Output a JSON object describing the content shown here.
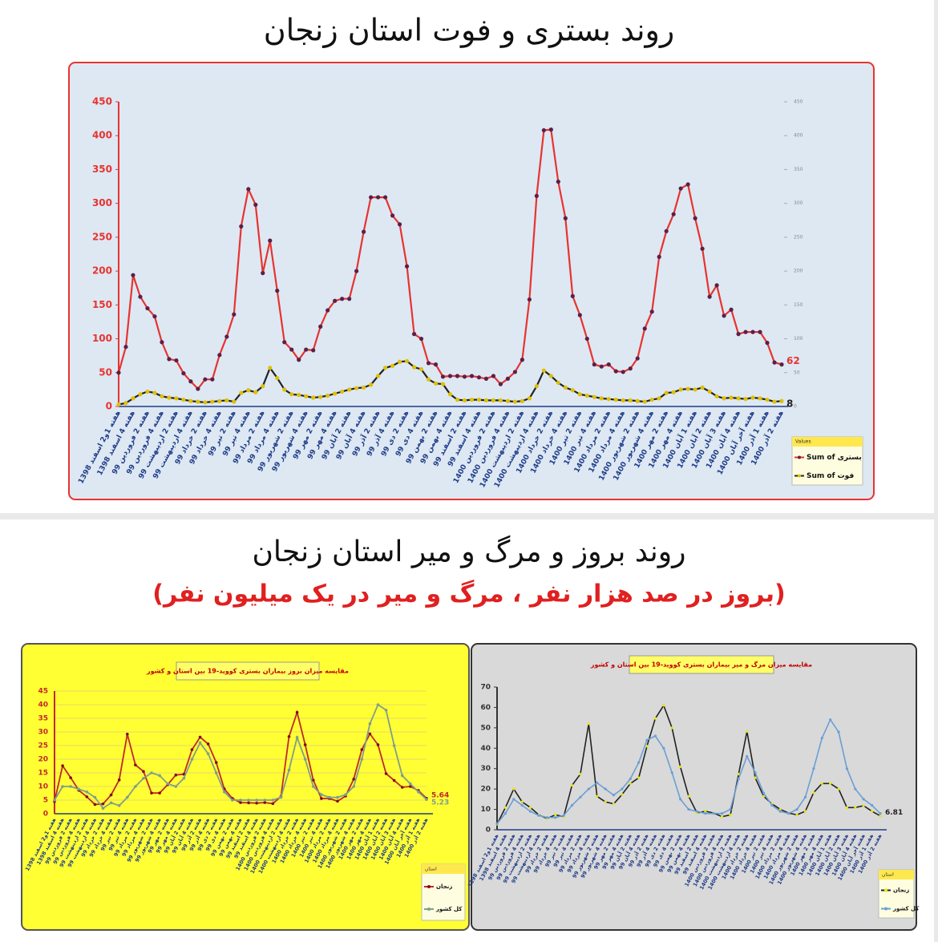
{
  "sections": [
    {
      "title": "روند بستری و فوت استان زنجان"
    },
    {
      "title": "روند بروز و مرگ و میر استان زنجان",
      "subtitle": "(بروز در صد هزار نفر ، مرگ و میر در یک میلیون نفر)"
    }
  ],
  "chart_data": [
    {
      "type": "line",
      "categories": [
        "هفته 1و2 اسفند 1398",
        null,
        "هفته 4 اسفند 1398",
        null,
        "هفته 2 فروردین 99",
        null,
        "هفته 4 فروردین 99",
        null,
        "هفته 2 اردیبهشت 99",
        null,
        "هفته 4 اردیبهشت 99",
        null,
        "هفته 2 خرداد 99",
        null,
        "هفته 4 خرداد 99",
        null,
        "هفته 2 تیر 99",
        null,
        "هفته 4 تیر 99",
        null,
        "هفته 2 مرداد 99",
        null,
        "هفته 4 مرداد 99",
        null,
        "هفته 2 شهریور 99",
        null,
        "هفته 4 شهریور 99",
        null,
        "هفته 2 مهر 99",
        null,
        "هفته 4 مهر 99",
        null,
        "هفته 2 آبان 99",
        null,
        "هفته 4 آبان 99",
        null,
        "هفته 2 آذر 99",
        null,
        "هفته 4 آذر 99",
        null,
        "هفته 2 دی 99",
        null,
        "هفته 4 دی 99",
        null,
        "هفته 2 بهمن 99",
        null,
        "هفته 4 بهمن 99",
        null,
        "هفته 2 اسفند 99",
        null,
        "هفته 4 اسفند 99",
        null,
        "هفته 2 فروردین 1400",
        null,
        "هفته 4 فروردین 1400",
        null,
        "هفته 2 اردیبهشت 1400",
        null,
        "هفته 4 اردیبهشت 1400",
        null,
        "هفته 2 خرداد 1400",
        null,
        "هفته 4 خرداد 1400",
        null,
        "هفته 2 تیر 1400",
        null,
        "هفته 4 تیر 1400",
        null,
        "هفته 2 مرداد 1400",
        null,
        "هفته 4 مرداد 1400",
        null,
        "هفته 2 شهریور 1400",
        null,
        "هفته 4 شهریور 1400",
        null,
        "هفته 2 مهر 1400",
        null,
        "هفته 4 مهر 1400",
        null,
        "هفته 1 آبان 1400",
        null,
        "هفته 2 آبان 1400",
        null,
        "هفته 3 آبان 1400",
        null,
        "هفته 4 آبان 1400",
        null,
        "هفته آخر آبان 1400",
        null,
        "هفته 1 آذر 1400",
        null,
        "هفته 2 آذر 1400"
      ],
      "series": [
        {
          "name": "Sum of بستری",
          "color": "#e8332f",
          "marker_color": "#5b2048",
          "end_label": true,
          "values": [
            50,
            88,
            194,
            162,
            145,
            133,
            95,
            70,
            68,
            49,
            37,
            26,
            40,
            40,
            76,
            103,
            136,
            266,
            321,
            298,
            197,
            245,
            171,
            95,
            84,
            69,
            84,
            83,
            118,
            142,
            156,
            159,
            159,
            200,
            258,
            309,
            309,
            309,
            282,
            269,
            207,
            107,
            100,
            64,
            62,
            44,
            45,
            45,
            44,
            45,
            43,
            41,
            45,
            33,
            41,
            51,
            69,
            158,
            311,
            408,
            409,
            332,
            278,
            163,
            135,
            100,
            62,
            59,
            62,
            52,
            51,
            56,
            71,
            115,
            140,
            221,
            259,
            284,
            322,
            328,
            278,
            233,
            162,
            179,
            134,
            143,
            107,
            110,
            110,
            110,
            94,
            65,
            62
          ]
        },
        {
          "name": "Sum of فوت",
          "color": "#222222",
          "marker_color": "#e0c000",
          "end_label": true,
          "values": [
            3,
            5,
            12,
            18,
            22,
            20,
            15,
            13,
            12,
            10,
            8,
            7,
            6,
            7,
            8,
            9,
            7,
            20,
            24,
            21,
            30,
            57,
            42,
            25,
            18,
            17,
            15,
            13,
            14,
            16,
            19,
            22,
            25,
            27,
            28,
            32,
            45,
            57,
            60,
            66,
            67,
            58,
            55,
            40,
            34,
            33,
            18,
            10,
            9,
            10,
            10,
            9,
            9,
            9,
            8,
            7,
            8,
            12,
            30,
            53,
            45,
            35,
            28,
            24,
            18,
            16,
            14,
            12,
            11,
            10,
            9,
            9,
            8,
            7,
            10,
            12,
            20,
            21,
            25,
            26,
            25,
            28,
            22,
            15,
            12,
            13,
            12,
            11,
            13,
            12,
            10,
            7,
            8
          ]
        }
      ],
      "ylim": [
        0,
        450
      ],
      "yticks": [
        0,
        50,
        100,
        150,
        200,
        250,
        300,
        350,
        400,
        450
      ],
      "y2lim": [
        0,
        450
      ],
      "y2ticks": [
        0,
        50,
        100,
        150,
        200,
        250,
        300,
        350,
        400,
        450
      ],
      "yaxis_color": "#e8332f",
      "grid": false,
      "legend": "bottom-right",
      "legend_title": "Values",
      "background": "#dde8f3",
      "border": "#e8332f"
    },
    {
      "type": "line",
      "title": "مقایسه میزان بروز بیماران بستری کووید-19 بین استان و کشور",
      "categories": [
        "هفته 1و2 اسفند 1398",
        "هفته 4 اسفند 1398",
        "هفته 2 فروردین 99",
        "هفته 4 فروردین 99",
        "هفته 2 اردیبهشت 99",
        "هفته 4 اردیبهشت 99",
        "هفته 2 خرداد 99",
        "هفته 4 خرداد 99",
        "هفته 2 تیر 99",
        "هفته 4 تیر 99",
        "هفته 2 مرداد 99",
        "هفته 4 مرداد 99",
        "هفته 2 شهریور 99",
        "هفته 4 شهریور 99",
        "هفته 2 مهر 99",
        "هفته 4 مهر 99",
        "هفته 2 آبان 99",
        "هفته 4 آبان 99",
        "هفته 2 آذر 99",
        "هفته 4 آذر 99",
        "هفته 2 دی 99",
        "هفته 4 دی 99",
        "هفته 2 بهمن 99",
        "هفته 4 بهمن 99",
        "هفته 2 اسفند 99",
        "هفته 4 اسفند 99",
        "هفته 2 فروردین 1400",
        "هفته 4 فروردین 1400",
        "هفته 2 اردیبهشت 1400",
        "هفته 4 اردیبهشت 1400",
        "هفته 2 خرداد 1400",
        "هفته 4 خرداد 1400",
        "هفته 2 تیر 1400",
        "هفته 4 تیر 1400",
        "هفته 2 مرداد 1400",
        "هفته 4 مرداد 1400",
        "هفته 2 شهریور 1400",
        "هفته 4 شهریور 1400",
        "هفته 2 مهر 1400",
        "هفته 4 مهر 1400",
        "هفته 1 آبان 1400",
        "هفته 2 آبان 1400",
        "هفته 3 آبان 1400",
        "هفته 4 آبان 1400",
        "هفته آخر آبان 1400",
        "هفته 1 آذر 1400",
        "هفته 2 آذر 1400"
      ],
      "series": [
        {
          "name": "زنجان",
          "color": "#c0282a",
          "marker_color": "#7a1020",
          "end_label": true,
          "values": [
            4.5,
            17.6,
            13.2,
            8.6,
            6.2,
            3.4,
            3.6,
            6.9,
            12.4,
            29.2,
            17.9,
            15.5,
            7.6,
            7.6,
            10.7,
            14.2,
            14.5,
            23.5,
            28.1,
            25.6,
            18.8,
            9.1,
            5.6,
            4.1,
            4,
            3.9,
            4.1,
            3.7,
            6.3,
            28.3,
            37.2,
            25.3,
            12.3,
            5.6,
            5.6,
            4.6,
            6.5,
            12.7,
            23.5,
            29.3,
            25.3,
            14.7,
            12.2,
            9.7,
            10,
            8.5,
            5.64
          ]
        },
        {
          "name": "کل کشور",
          "color": "#7f9f8a",
          "marker_color": "#7f9f8a",
          "end_label": true,
          "values": [
            5,
            10,
            10,
            9,
            8,
            6,
            2,
            4,
            3,
            6,
            10,
            13,
            15,
            14,
            11,
            10,
            13,
            20,
            26,
            22,
            15,
            8,
            5,
            5,
            5,
            5,
            5,
            5,
            6,
            16,
            28,
            20,
            10,
            7,
            6,
            6,
            7,
            10,
            20,
            33,
            40,
            38,
            25,
            14,
            11,
            8,
            5.23
          ]
        }
      ],
      "ylim": [
        0,
        45
      ],
      "yticks": [
        0,
        5,
        10,
        15,
        20,
        25,
        30,
        35,
        40,
        45
      ],
      "yaxis_color": "#c0282a",
      "grid": true,
      "legend": "bottom-right",
      "legend_title": "استان",
      "background": "#ffff33",
      "border": "#555555"
    },
    {
      "type": "line",
      "title": "مقایسه میزان مرگ و میر بیماران بستری کووید-19 بین استان و کشور",
      "categories": [
        "هفته 1و2 اسفند 1398",
        "هفته 4 اسفند 1398",
        "هفته 2 فروردین 99",
        "هفته 4 فروردین 99",
        "هفته 2 اردیبهشت 99",
        "هفته 4 اردیبهشت 99",
        "هفته 2 خرداد 99",
        "هفته 4 خرداد 99",
        "هفته 2 تیر 99",
        "هفته 4 تیر 99",
        "هفته 2 مرداد 99",
        "هفته 4 مرداد 99",
        "هفته 2 شهریور 99",
        "هفته 4 شهریور 99",
        "هفته 2 مهر 99",
        "هفته 4 مهر 99",
        "هفته 2 آبان 99",
        "هفته 4 آبان 99",
        "هفته 2 آذر 99",
        "هفته 4 آذر 99",
        "هفته 2 دی 99",
        "هفته 4 دی 99",
        "هفته 2 بهمن 99",
        "هفته 4 بهمن 99",
        "هفته 2 اسفند 99",
        "هفته 4 اسفند 99",
        "هفته 2 فروردین 1400",
        "هفته 4 فروردین 1400",
        "هفته 2 اردیبهشت 1400",
        "هفته 4 اردیبهشت 1400",
        "هفته 2 خرداد 1400",
        "هفته 4 خرداد 1400",
        "هفته 2 تیر 1400",
        "هفته 4 تیر 1400",
        "هفته 2 مرداد 1400",
        "هفته 4 مرداد 1400",
        "هفته 2 شهریور 1400",
        "هفته 4 شهریور 1400",
        "هفته 2 مهر 1400",
        "هفته 4 مهر 1400",
        "هفته 1 آبان 1400",
        "هفته 2 آبان 1400",
        "هفته 3 آبان 1400",
        "هفته 4 آبان 1400",
        "هفته آخر آبان 1400",
        "هفته 1 آذر 1400",
        "هفته 2 آذر 1400"
      ],
      "series": [
        {
          "name": "زنجان",
          "color": "#222222",
          "marker_color": "#e6e600",
          "end_label": true,
          "values": [
            2.7,
            10.9,
            20,
            13.7,
            10.9,
            7.3,
            5.5,
            7.3,
            6.4,
            21.8,
            27.3,
            52,
            16.4,
            13.7,
            12.7,
            17.3,
            22.7,
            25.5,
            41,
            54.6,
            61,
            50,
            30.9,
            16.4,
            8.2,
            9.1,
            8.2,
            6.4,
            7.3,
            27.3,
            48.2,
            25.5,
            16.4,
            12.7,
            10,
            8.2,
            7.3,
            9.1,
            18.2,
            22.7,
            22.7,
            20,
            10.9,
            10.9,
            11.8,
            9.1,
            6.81
          ]
        },
        {
          "name": "کل کشور",
          "color": "#6a9fd4",
          "marker_color": "#6a9fd4",
          "end_label": false,
          "values": [
            3,
            8,
            15,
            12,
            9,
            7,
            6,
            6,
            7,
            12,
            16,
            20,
            23,
            20,
            17,
            20,
            25,
            33,
            44,
            46,
            40,
            28,
            15,
            10,
            9,
            8,
            8,
            8,
            10,
            25,
            36,
            28,
            18,
            12,
            9,
            8,
            10,
            16,
            30,
            45,
            54,
            48,
            30,
            20,
            15,
            12,
            8
          ]
        }
      ],
      "ylim": [
        0,
        70
      ],
      "yticks": [
        0,
        10,
        20,
        30,
        40,
        50,
        60,
        70
      ],
      "yaxis_color": "#333333",
      "grid": false,
      "legend": "bottom-right",
      "legend_title": "استان",
      "background": "#d9d9d9",
      "border": "#333333"
    }
  ]
}
